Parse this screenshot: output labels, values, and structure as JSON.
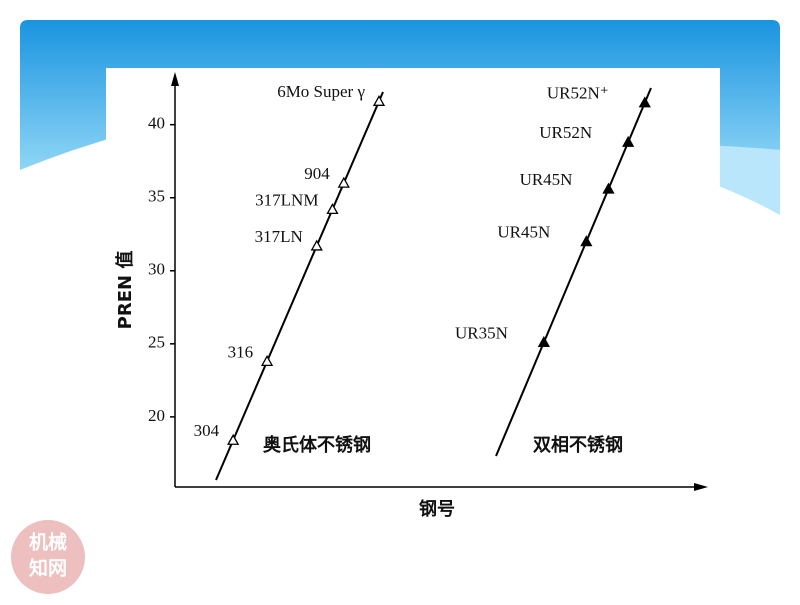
{
  "chart_data": {
    "type": "scatter",
    "y_label": "PREN 值",
    "x_label": "钢号",
    "ylim": [
      15.2,
      43.4
    ],
    "yticks": [
      20,
      25,
      30,
      35,
      40
    ],
    "series": [
      {
        "name": "奥氏体不锈钢",
        "color": "#000000",
        "filled": false,
        "labels": [
          "304",
          "316",
          "317LN",
          "317LNM",
          "904",
          "6Mo  Super γ"
        ],
        "values": [
          18.4,
          23.8,
          31.7,
          34.2,
          36.0,
          41.6
        ]
      },
      {
        "name": "双相不锈钢",
        "color": "#000000",
        "filled": true,
        "labels": [
          "UR35N",
          "UR45N",
          "UR45N",
          "UR52N",
          "UR52N⁺"
        ],
        "values": [
          25.1,
          32.0,
          35.6,
          38.8,
          41.5
        ]
      }
    ]
  },
  "watermark": [
    "机械",
    "知网"
  ]
}
